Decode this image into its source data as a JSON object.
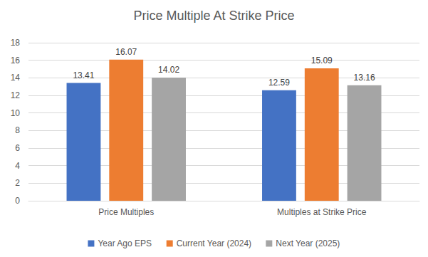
{
  "chart_data": {
    "type": "bar",
    "title": "Price Multiple At Strike Price",
    "categories": [
      "Price Multiples",
      "Multiples at Strike Price"
    ],
    "series": [
      {
        "name": "Year Ago EPS",
        "color": "#4472c4",
        "values": [
          13.41,
          12.59
        ]
      },
      {
        "name": "Current Year (2024)",
        "color": "#ed7d31",
        "values": [
          16.07,
          15.09
        ]
      },
      {
        "name": "Next Year (2025)",
        "color": "#a5a5a5",
        "values": [
          14.02,
          13.16
        ]
      }
    ],
    "ylim": [
      0,
      18
    ],
    "yticks": [
      0,
      2,
      4,
      6,
      8,
      10,
      12,
      14,
      16,
      18
    ],
    "grid": true,
    "legend": "bottom",
    "data_labels": true
  }
}
